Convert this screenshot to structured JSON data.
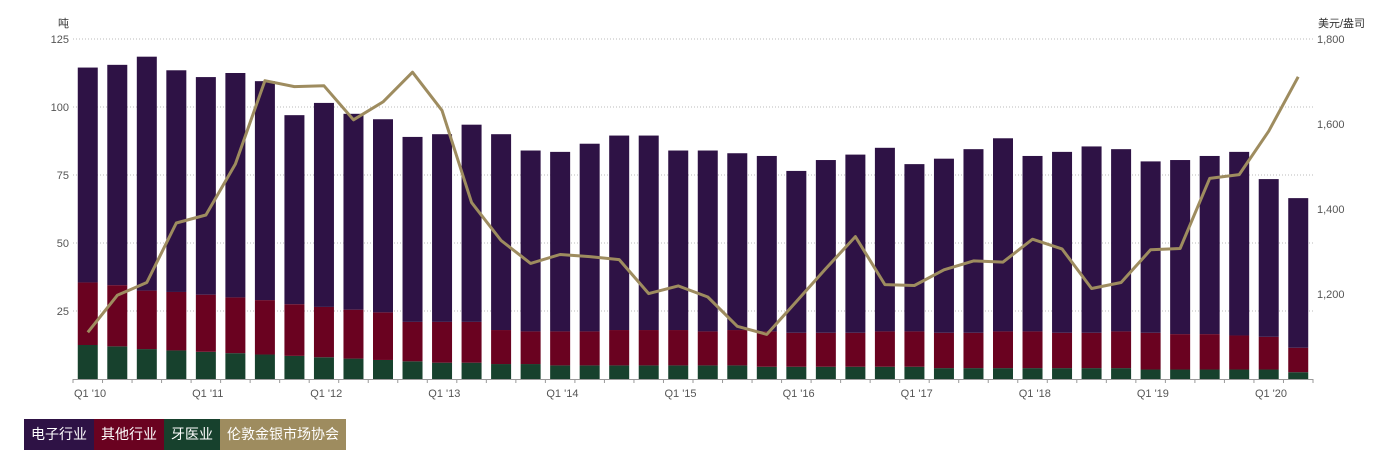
{
  "chart_data": {
    "type": "bar",
    "stacked": true,
    "left_axis": {
      "unit": "吨",
      "ticks": [
        25,
        50,
        75,
        100,
        125
      ],
      "ylim": [
        0,
        125
      ]
    },
    "right_axis": {
      "unit": "美元/盎司",
      "ticks": [
        1200,
        1400,
        1600,
        1800
      ],
      "ylim": [
        1000,
        1800
      ]
    },
    "x_tick_labels": [
      {
        "index": 0,
        "label": "Q1 '10"
      },
      {
        "index": 4,
        "label": "Q1 '11"
      },
      {
        "index": 8,
        "label": "Q1 '12"
      },
      {
        "index": 12,
        "label": "Q1 '13"
      },
      {
        "index": 16,
        "label": "Q1 '14"
      },
      {
        "index": 20,
        "label": "Q1 '15"
      },
      {
        "index": 24,
        "label": "Q1 '16"
      },
      {
        "index": 28,
        "label": "Q1 '17"
      },
      {
        "index": 32,
        "label": "Q1 '18"
      },
      {
        "index": 36,
        "label": "Q1 '19"
      },
      {
        "index": 40,
        "label": "Q1 '20"
      }
    ],
    "categories": [
      "Q1 '10",
      "Q2 '10",
      "Q3 '10",
      "Q4 '10",
      "Q1 '11",
      "Q2 '11",
      "Q3 '11",
      "Q4 '11",
      "Q1 '12",
      "Q2 '12",
      "Q3 '12",
      "Q4 '12",
      "Q1 '13",
      "Q2 '13",
      "Q3 '13",
      "Q4 '13",
      "Q1 '14",
      "Q2 '14",
      "Q3 '14",
      "Q4 '14",
      "Q1 '15",
      "Q2 '15",
      "Q3 '15",
      "Q4 '15",
      "Q1 '16",
      "Q2 '16",
      "Q3 '16",
      "Q4 '16",
      "Q1 '17",
      "Q2 '17",
      "Q3 '17",
      "Q4 '17",
      "Q1 '18",
      "Q2 '18",
      "Q3 '18",
      "Q4 '18",
      "Q1 '19",
      "Q2 '19",
      "Q3 '19",
      "Q4 '19",
      "Q1 '20",
      "Q2 '20"
    ],
    "series": [
      {
        "name": "牙医业",
        "color": "#17412d",
        "axis": "left",
        "values": [
          12.5,
          12,
          11,
          10.5,
          10,
          9.5,
          9,
          8.5,
          8,
          7.5,
          7,
          6.5,
          6,
          6,
          5.5,
          5.5,
          5,
          5,
          5,
          5,
          5,
          5,
          5,
          4.5,
          4.5,
          4.5,
          4.5,
          4.5,
          4.5,
          4,
          4,
          4,
          4,
          4,
          4,
          4,
          3.5,
          3.5,
          3.5,
          3.5,
          3.5,
          2.5
        ]
      },
      {
        "name": "其他行业",
        "color": "#6a0220",
        "axis": "left",
        "values": [
          23,
          22.5,
          21.5,
          21.5,
          21,
          20.5,
          20,
          19,
          18.5,
          18,
          17.5,
          14.5,
          15,
          15,
          12.5,
          12,
          12.5,
          12.5,
          13,
          13,
          13,
          12.5,
          13,
          13,
          12.5,
          12.5,
          12.5,
          13,
          13,
          13,
          13,
          13.5,
          13.5,
          13,
          13,
          13.5,
          13.5,
          13,
          13,
          12.5,
          12,
          9
        ]
      },
      {
        "name": "电子行业",
        "color": "#2e1245",
        "axis": "left",
        "values": [
          79,
          81,
          86,
          81.5,
          80,
          82.5,
          80.5,
          69.5,
          75,
          72,
          71,
          68,
          69,
          72.5,
          72,
          66.5,
          66,
          69,
          71.5,
          71.5,
          66,
          66.5,
          65,
          64.5,
          59.5,
          63.5,
          65.5,
          67.5,
          61.5,
          64,
          67.5,
          71,
          64.5,
          66.5,
          68.5,
          67,
          63,
          64,
          65.5,
          67.5,
          58,
          55
        ]
      },
      {
        "name": "伦敦金银市场协会",
        "color": "#9e8c5f",
        "axis": "right",
        "type": "line",
        "values": [
          1110,
          1197,
          1227,
          1367,
          1386,
          1506,
          1702,
          1688,
          1690,
          1610,
          1652,
          1722,
          1632,
          1415,
          1326,
          1272,
          1293,
          1288,
          1281,
          1201,
          1219,
          1193,
          1124,
          1105,
          1182,
          1260,
          1335,
          1222,
          1220,
          1257,
          1278,
          1275,
          1329,
          1306,
          1213,
          1227,
          1304,
          1307,
          1472,
          1481,
          1583,
          1711
        ]
      }
    ]
  },
  "legend": [
    {
      "label": "电子行业",
      "color": "#2e1245"
    },
    {
      "label": "其他行业",
      "color": "#6a0220"
    },
    {
      "label": "牙医业",
      "color": "#17412d"
    },
    {
      "label": "伦敦金银市场协会",
      "color": "#9e8c5f"
    }
  ]
}
